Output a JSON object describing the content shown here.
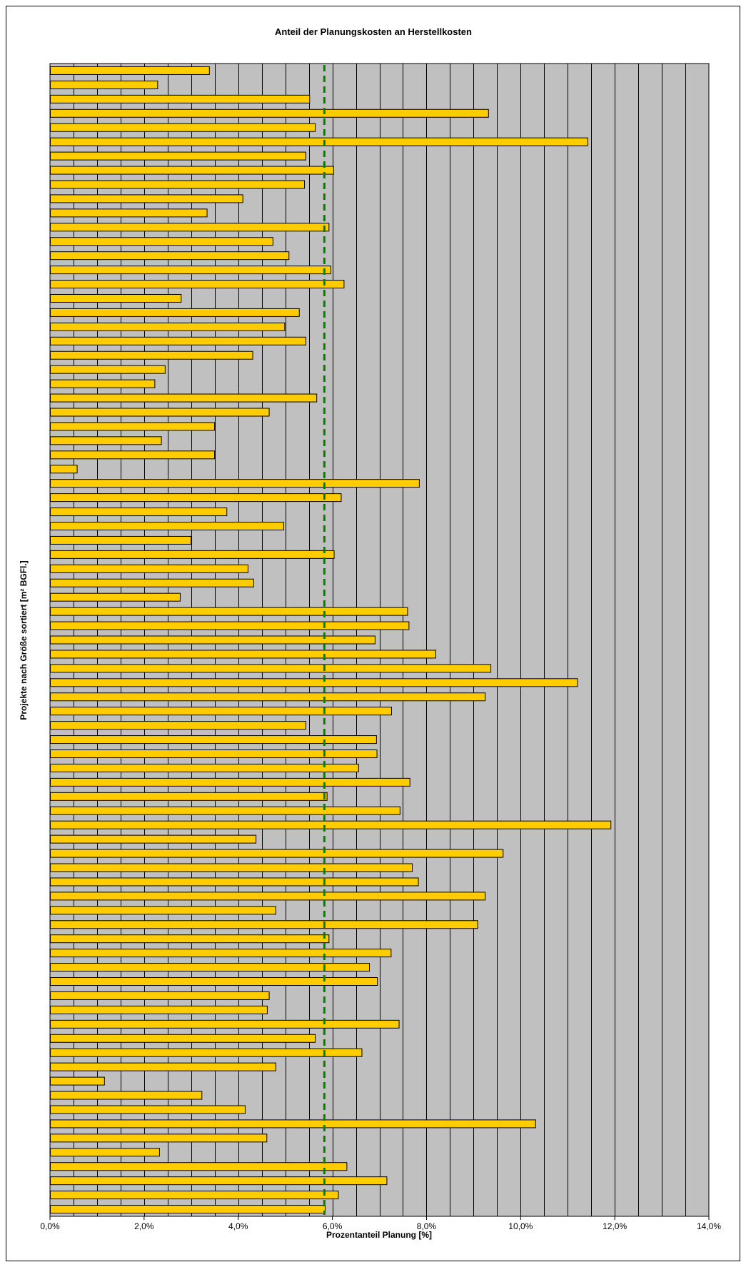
{
  "chart_data": {
    "type": "bar",
    "orientation": "horizontal",
    "title": "Anteil der Planungskosten an Herstellkosten",
    "xlabel": "Prozentanteil Planung [%]",
    "ylabel": "Projekte nach Größe sortiert [m² BGFl.]",
    "xlim": [
      0,
      14
    ],
    "x_ticks": [
      0,
      2,
      4,
      6,
      8,
      10,
      12,
      14
    ],
    "x_tick_labels": [
      "0,0%",
      "2,0%",
      "4,0%",
      "6,0%",
      "8,0%",
      "10,0%",
      "12,0%",
      "14,0%"
    ],
    "grid": true,
    "values": [
      3.38,
      2.28,
      5.51,
      9.31,
      5.63,
      11.42,
      5.43,
      6.02,
      5.4,
      4.09,
      3.33,
      5.92,
      4.73,
      5.07,
      5.96,
      6.24,
      2.78,
      5.29,
      4.98,
      5.43,
      4.3,
      2.44,
      2.22,
      5.66,
      4.65,
      3.49,
      2.36,
      3.49,
      0.57,
      7.84,
      6.18,
      3.75,
      4.96,
      2.99,
      6.03,
      4.2,
      4.32,
      2.76,
      7.59,
      7.62,
      6.9,
      8.19,
      9.36,
      11.2,
      9.24,
      7.25,
      5.43,
      6.93,
      6.94,
      6.55,
      7.64,
      5.88,
      7.43,
      11.91,
      4.37,
      9.62,
      7.69,
      7.82,
      9.24,
      4.79,
      9.08,
      5.92,
      7.24,
      6.78,
      6.95,
      4.65,
      4.61,
      7.41,
      5.63,
      6.62,
      4.79,
      1.15,
      3.22,
      4.14,
      10.31,
      4.6,
      2.32,
      6.3,
      7.15,
      6.12,
      5.84
    ],
    "reference_line": {
      "value": 5.83,
      "style": "dashed",
      "color": "#008000"
    },
    "colors": {
      "bar_fill": "#FFCC00",
      "bar_stroke": "#000000",
      "plot_background": "#C0C0C0",
      "grid": "#000000",
      "reference_line": "#008000"
    }
  }
}
